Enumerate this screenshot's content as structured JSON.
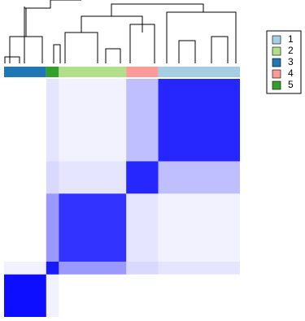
{
  "chart_data": {
    "type": "heatmap",
    "series": [
      {
        "name": "1",
        "color": "#a6cee3",
        "size": 97
      },
      {
        "name": "2",
        "color": "#b2df8a",
        "size": 80
      },
      {
        "name": "3",
        "color": "#1f78b4",
        "size": 50
      },
      {
        "name": "4",
        "color": "#fb9a99",
        "size": 38
      },
      {
        "name": "5",
        "color": "#33a02c",
        "size": 15
      }
    ],
    "order": [
      "3",
      "5",
      "2",
      "4",
      "1"
    ],
    "values": [
      [
        0.85,
        0.05,
        0.0,
        0.25,
        0.1
      ],
      [
        0.05,
        0.8,
        0.0,
        0.1,
        0.4
      ],
      [
        0.0,
        0.0,
        0.95,
        0.0,
        0.05
      ],
      [
        0.25,
        0.1,
        0.0,
        0.85,
        0.15
      ],
      [
        0.1,
        0.4,
        0.05,
        0.15,
        0.9
      ]
    ],
    "color": "#0000ff"
  }
}
